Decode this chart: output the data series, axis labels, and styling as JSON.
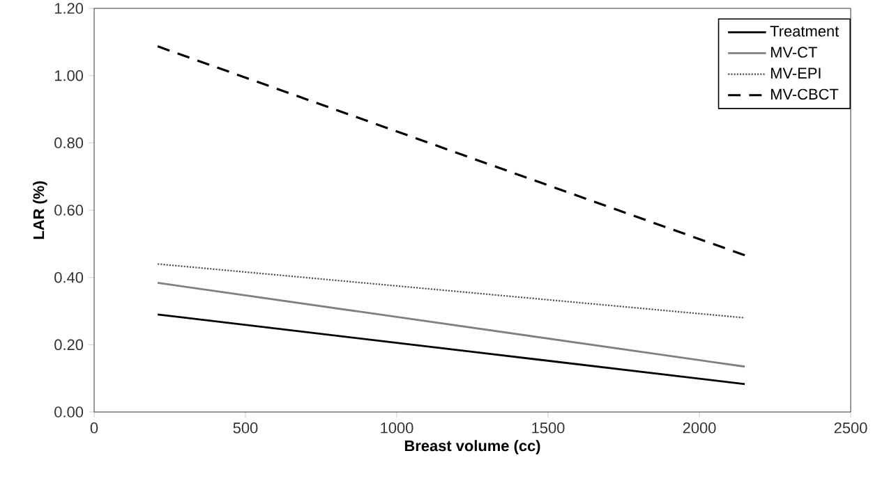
{
  "chart_data": {
    "type": "line",
    "xlabel": "Breast volume (cc)",
    "ylabel": "LAR (%)",
    "xlim": [
      0,
      2500
    ],
    "xticks": [
      0,
      500,
      1000,
      1500,
      2000,
      2500
    ],
    "ylim": [
      0,
      1.2
    ],
    "yticks": [
      {
        "value": 0,
        "label": "0.00"
      },
      {
        "value": 0.2,
        "label": "0.20"
      },
      {
        "value": 0.4,
        "label": "0.40"
      },
      {
        "value": 0.6,
        "label": "0.60"
      },
      {
        "value": 0.8,
        "label": "0.80"
      },
      {
        "value": 1.0,
        "label": "1.00"
      },
      {
        "value": 1.2,
        "label": "1.20"
      }
    ],
    "x": [
      210,
      2150
    ],
    "grid": false,
    "legend": "top right",
    "marker": "none",
    "series": [
      {
        "name": "Treatment",
        "color": "#000000",
        "line_style": "solid",
        "values": [
          0.29,
          0.083
        ]
      },
      {
        "name": "MV-CT",
        "color": "#808080",
        "line_style": "solid",
        "values": [
          0.384,
          0.135
        ]
      },
      {
        "name": "MV-EPI",
        "color": "#505050",
        "line_style": "dotted",
        "values": [
          0.44,
          0.28
        ]
      },
      {
        "name": "MV-CBCT",
        "color": "#000000",
        "line_style": "dashed",
        "values": [
          1.087,
          0.466
        ]
      }
    ]
  }
}
